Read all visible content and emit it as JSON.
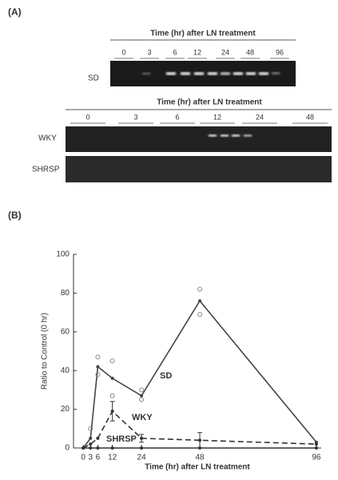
{
  "panel_a": {
    "label": "(A)",
    "gel_sd": {
      "header": "Time (hr) after LN treatment",
      "times": [
        "0",
        "3",
        "6",
        "12",
        "24",
        "48",
        "96"
      ],
      "row_label": "SD"
    },
    "gel_strains": {
      "header": "Time (hr) after LN treatment",
      "times": [
        "0",
        "3",
        "6",
        "12",
        "24",
        "48"
      ],
      "row_labels": [
        "WKY",
        "SHRSP"
      ]
    }
  },
  "panel_b": {
    "label": "(B)"
  },
  "chart_data": {
    "type": "line",
    "x_label": "Time (hr) after LN treatment",
    "y_label": "Ratio to Control (0 hr)",
    "x": [
      0,
      3,
      6,
      12,
      24,
      48,
      96
    ],
    "xlim": [
      -4,
      98
    ],
    "xticks": [
      0,
      3,
      6,
      12,
      24,
      48,
      96
    ],
    "ylim": [
      0,
      100
    ],
    "yticks": [
      0,
      20,
      40,
      60,
      80,
      100
    ],
    "series": [
      {
        "name": "SD",
        "color": "#444444",
        "line_style": "solid",
        "values": [
          0,
          5,
          42,
          36,
          27,
          76,
          3
        ],
        "errors": [
          null,
          null,
          null,
          null,
          null,
          null,
          null
        ],
        "replicates": {
          "x": [
            3,
            6,
            6,
            12,
            12,
            24,
            24,
            48,
            48
          ],
          "y": [
            10,
            47,
            38,
            45,
            27,
            30,
            25,
            82,
            69
          ]
        }
      },
      {
        "name": "WKY",
        "color": "#333333",
        "line_style": "dashed",
        "values": [
          0,
          2,
          5,
          19,
          5,
          4,
          2
        ],
        "errors": [
          null,
          null,
          null,
          5,
          2,
          4,
          null
        ]
      },
      {
        "name": "SHRSP",
        "color": "#333333",
        "line_style": "solid",
        "values": [
          0,
          0,
          0,
          0,
          0,
          0,
          0
        ],
        "errors": [
          null,
          null,
          null,
          null,
          null,
          null,
          null
        ]
      }
    ]
  }
}
